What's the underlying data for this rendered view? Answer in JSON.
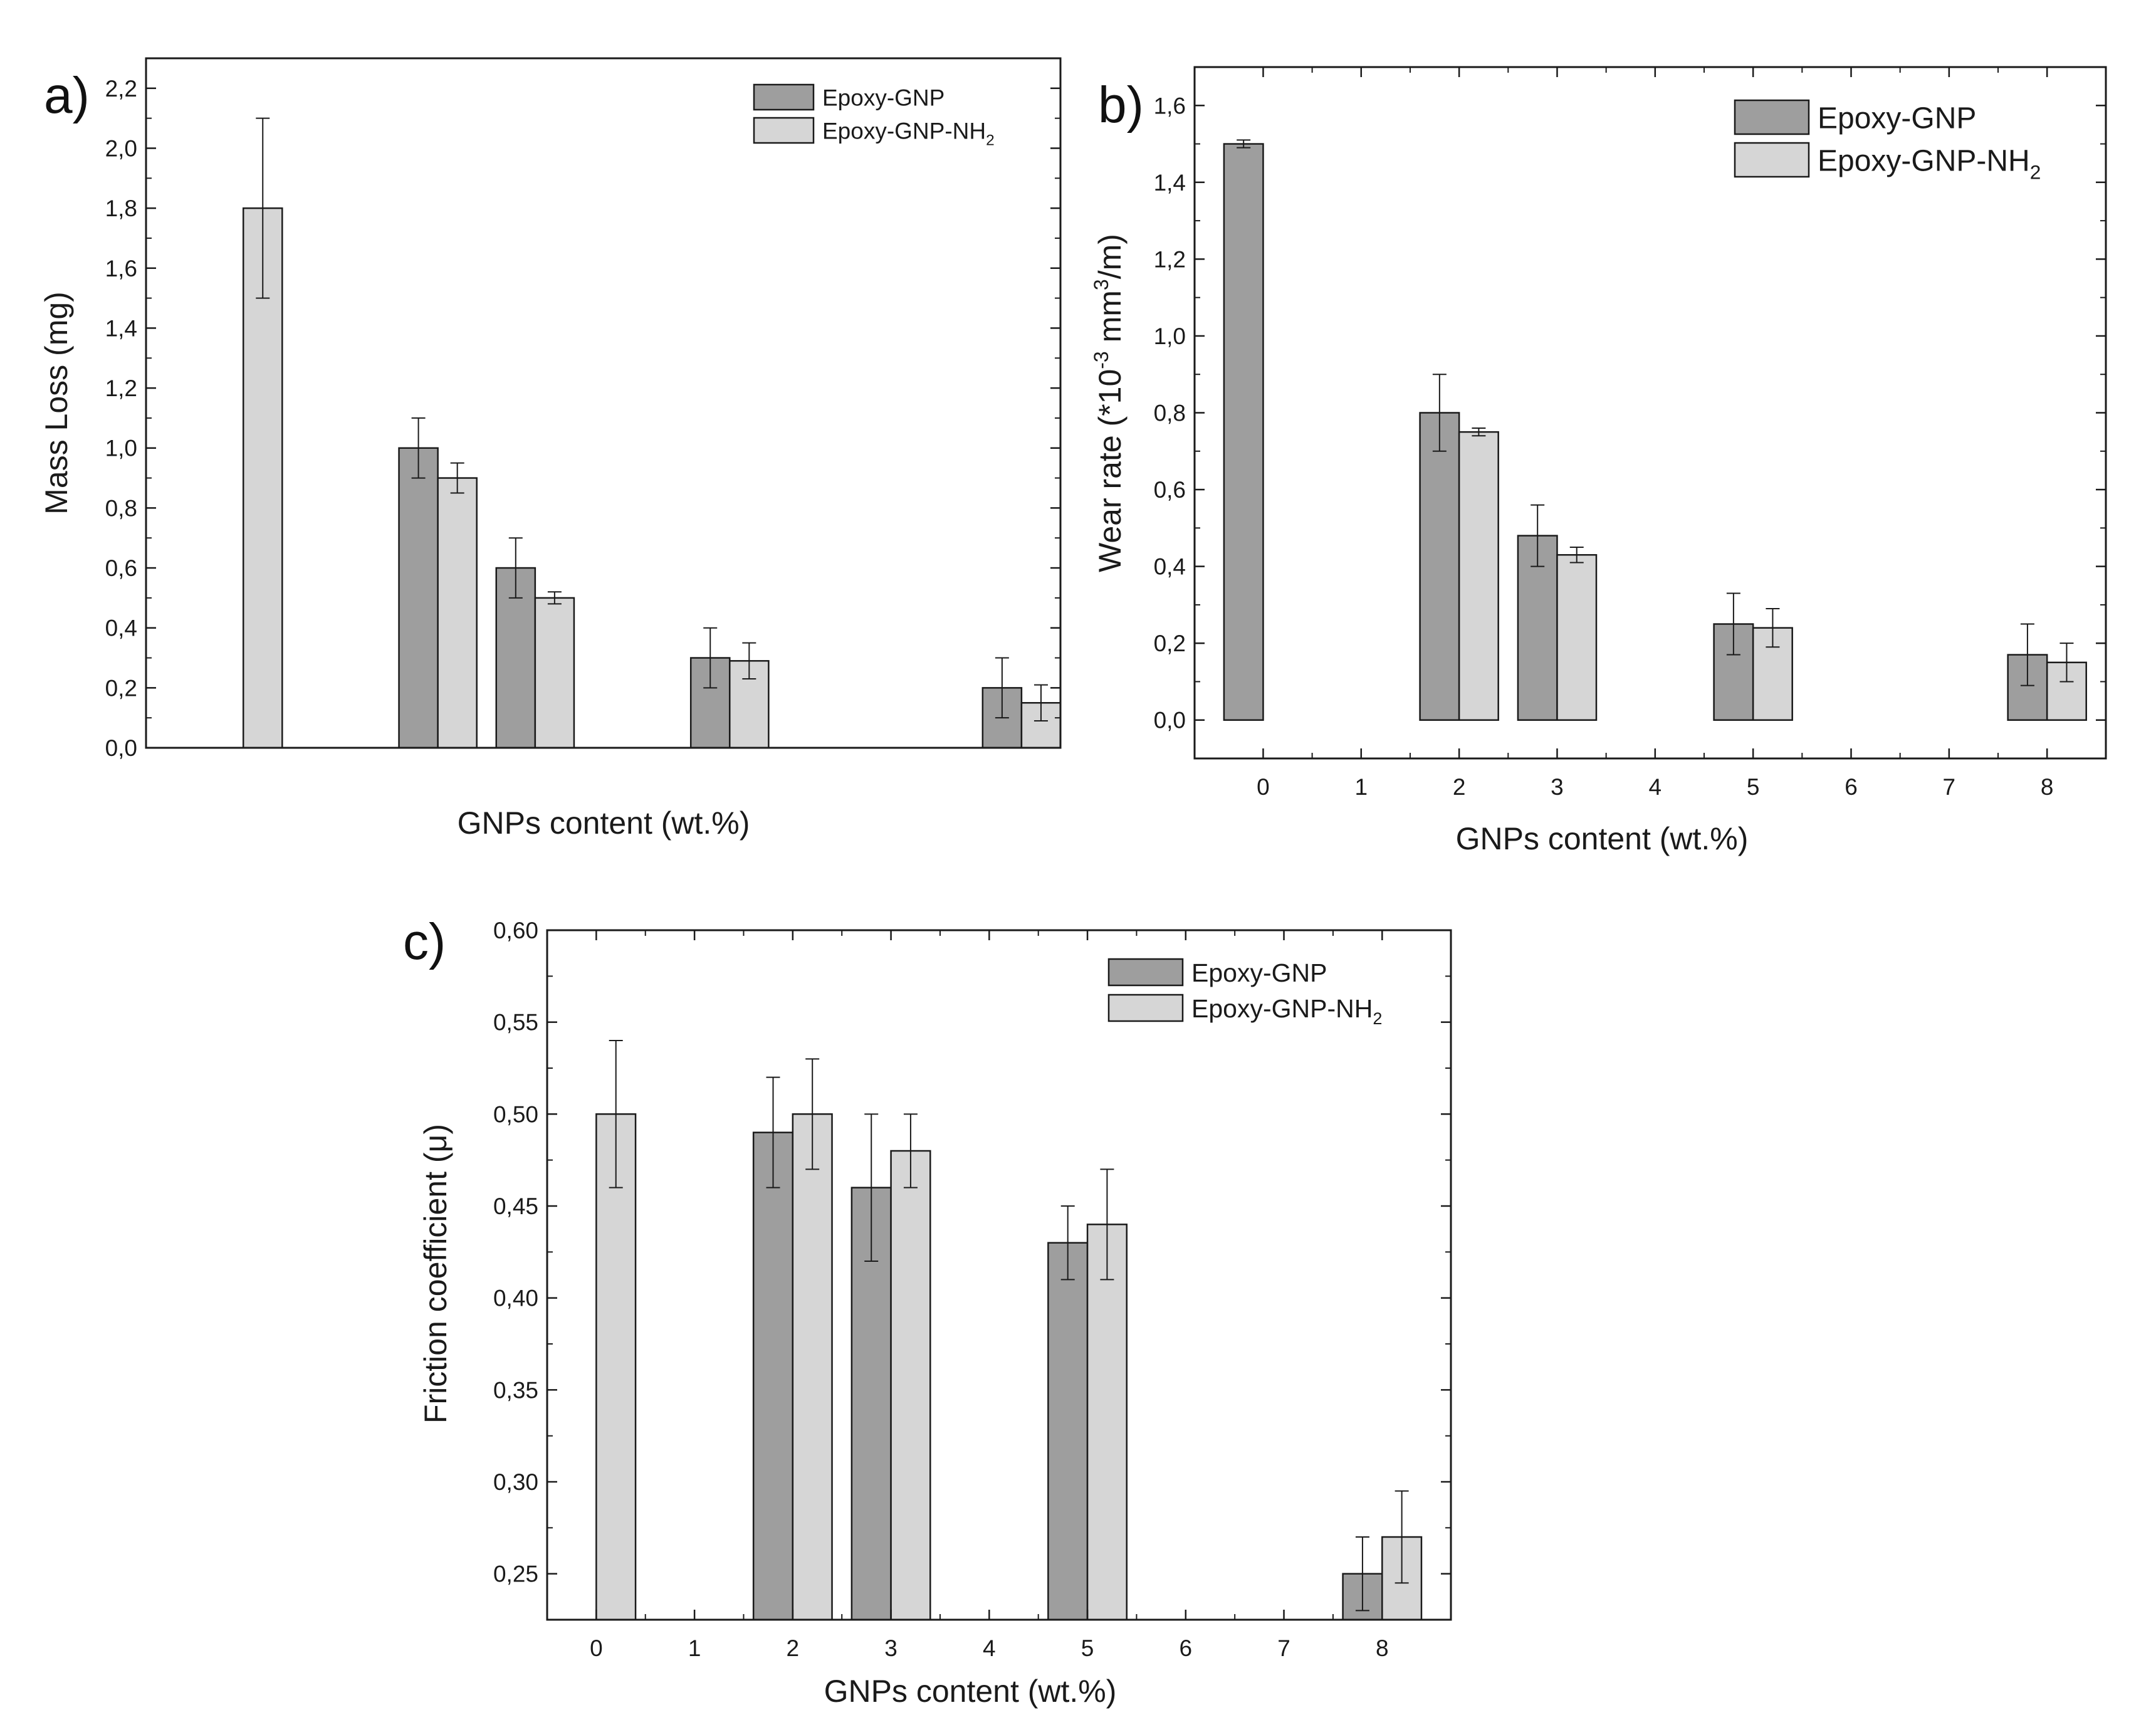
{
  "colors": {
    "epoxy_gnp": "#9e9e9e",
    "epoxy_gnp_nh2": "#d6d6d6",
    "axis": "#1a1a1a"
  },
  "chart_data": [
    {
      "id": "a",
      "type": "bar",
      "panel_label": "a)",
      "title": "",
      "xlabel": "GNPs content (wt.%)",
      "ylabel": "Mass Loss (mg)",
      "ylim": [
        0,
        2.3
      ],
      "xlim": [
        -1,
        8.4
      ],
      "show_xticks": false,
      "yticks": [
        "0,0",
        "0,2",
        "0,4",
        "0,6",
        "0,8",
        "1,0",
        "1,2",
        "1,4",
        "1,6",
        "1,8",
        "2,0",
        "2,2"
      ],
      "ytick_values": [
        0,
        0.2,
        0.4,
        0.6,
        0.8,
        1.0,
        1.2,
        1.4,
        1.6,
        1.8,
        2.0,
        2.2
      ],
      "legend_position": "top-right",
      "legend": [
        {
          "label": "Epoxy-GNP",
          "sub": ""
        },
        {
          "label": "Epoxy-GNP-NH",
          "sub": "2"
        }
      ],
      "x": [
        0,
        2,
        3,
        5,
        8
      ],
      "series": [
        {
          "name": "Epoxy-GNP",
          "values": [
            null,
            1.0,
            0.6,
            0.3,
            0.2
          ],
          "errors": [
            null,
            0.1,
            0.1,
            0.1,
            0.1
          ]
        },
        {
          "name": "Epoxy-GNP-NH2",
          "values": [
            1.8,
            0.9,
            0.5,
            0.29,
            0.15
          ],
          "errors": [
            0.3,
            0.05,
            0.02,
            0.06,
            0.06
          ]
        }
      ]
    },
    {
      "id": "b",
      "type": "bar",
      "panel_label": "b)",
      "title": "",
      "xlabel": "GNPs content (wt.%)",
      "ylabel": "Wear rate (*10",
      "ylabel_sup": "-3",
      "ylabel_mid": " mm",
      "ylabel_sup2": "3",
      "ylabel_end": "/m)",
      "ylim": [
        -0.1,
        1.7
      ],
      "xlim": [
        -0.7,
        8.6
      ],
      "show_xticks": true,
      "xticks": [
        "0",
        "1",
        "2",
        "3",
        "4",
        "5",
        "6",
        "7",
        "8"
      ],
      "xtick_values": [
        0,
        1,
        2,
        3,
        4,
        5,
        6,
        7,
        8
      ],
      "yticks": [
        "0,0",
        "0,2",
        "0,4",
        "0,6",
        "0,8",
        "1,0",
        "1,2",
        "1,4",
        "1,6"
      ],
      "ytick_values": [
        0,
        0.2,
        0.4,
        0.6,
        0.8,
        1.0,
        1.2,
        1.4,
        1.6
      ],
      "legend_position": "top-right",
      "legend": [
        {
          "label": "Epoxy-GNP",
          "sub": ""
        },
        {
          "label": "Epoxy-GNP-NH",
          "sub": "2"
        }
      ],
      "x": [
        0,
        2,
        3,
        5,
        8
      ],
      "series": [
        {
          "name": "Epoxy-GNP",
          "values": [
            1.5,
            0.8,
            0.48,
            0.25,
            0.17
          ],
          "errors": [
            0.01,
            0.1,
            0.08,
            0.08,
            0.08
          ]
        },
        {
          "name": "Epoxy-GNP-NH2",
          "values": [
            null,
            0.75,
            0.43,
            0.24,
            0.15
          ],
          "errors": [
            null,
            0.01,
            0.02,
            0.05,
            0.05
          ]
        }
      ]
    },
    {
      "id": "c",
      "type": "bar",
      "panel_label": "c)",
      "title": "",
      "xlabel": "GNPs content (wt.%)",
      "ylabel": "Friction coefficient (μ)",
      "ylim": [
        0.225,
        0.6
      ],
      "xlim": [
        -0.5,
        8.7
      ],
      "show_xticks": true,
      "xticks": [
        "0",
        "1",
        "2",
        "3",
        "4",
        "5",
        "6",
        "7",
        "8"
      ],
      "xtick_values": [
        0,
        1,
        2,
        3,
        4,
        5,
        6,
        7,
        8
      ],
      "yticks": [
        "0,25",
        "0,30",
        "0,35",
        "0,40",
        "0,45",
        "0,50",
        "0,55",
        "0,60"
      ],
      "ytick_values": [
        0.25,
        0.3,
        0.35,
        0.4,
        0.45,
        0.5,
        0.55,
        0.6
      ],
      "legend_position": "top-right",
      "legend": [
        {
          "label": "Epoxy-GNP",
          "sub": ""
        },
        {
          "label": "Epoxy-GNP-NH",
          "sub": "2"
        }
      ],
      "x": [
        0,
        2,
        3,
        5,
        8
      ],
      "series": [
        {
          "name": "Epoxy-GNP",
          "values": [
            null,
            0.49,
            0.46,
            0.43,
            0.25
          ],
          "errors": [
            null,
            0.03,
            0.04,
            0.02,
            0.02
          ]
        },
        {
          "name": "Epoxy-GNP-NH2",
          "values": [
            0.5,
            0.5,
            0.48,
            0.44,
            0.27
          ],
          "errors": [
            0.04,
            0.03,
            0.02,
            0.03,
            0.025
          ]
        }
      ]
    }
  ]
}
